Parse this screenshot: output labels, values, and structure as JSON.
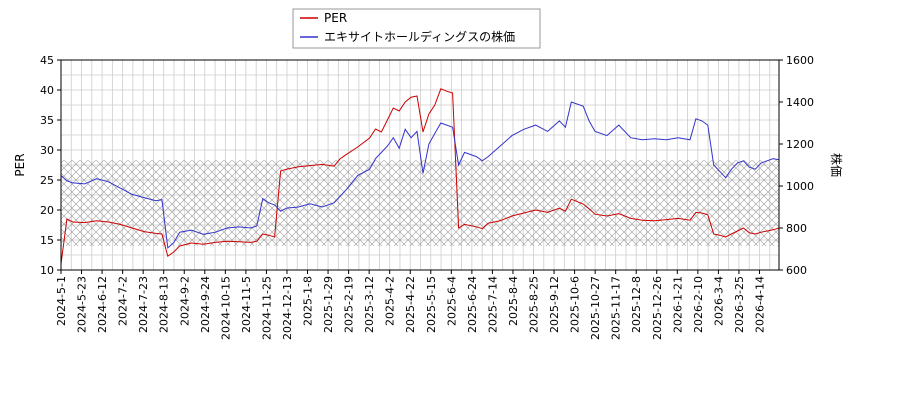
{
  "chart_data": {
    "type": "line",
    "title": "",
    "legend": {
      "placement": "top-center",
      "entries": [
        {
          "name": "PER",
          "color": "#cc0000"
        },
        {
          "name": "エキサイトホールディングスの株価",
          "color": "#3333cc"
        }
      ]
    },
    "xlabels": [
      "2024-5-1",
      "2024-5-23",
      "2024-6-12",
      "2024-7-2",
      "2024-7-23",
      "2024-8-13",
      "2024-9-2",
      "2024-9-24",
      "2024-10-15",
      "2024-11-5",
      "2024-11-25",
      "2024-12-13",
      "2025-1-8",
      "2025-1-29",
      "2025-2-19",
      "2025-3-12",
      "2025-4-2",
      "2025-4-22",
      "2025-5-15",
      "2025-6-4",
      "2025-6-24",
      "2025-7-14",
      "2025-8-4",
      "2025-8-25",
      "2025-9-12",
      "2025-10-6",
      "2025-10-27",
      "2025-11-17",
      "2025-12-8",
      "2025-12-26",
      "2026-1-21",
      "2026-2-10",
      "2026-3-4",
      "2026-3-25",
      "2026-4-14"
    ],
    "y_left": {
      "label": "PER",
      "lim": [
        10,
        45
      ],
      "ticks": [
        10,
        15,
        20,
        25,
        30,
        35,
        40,
        45
      ]
    },
    "y_right": {
      "label": "株価",
      "lim": [
        600,
        1600
      ],
      "ticks": [
        600,
        800,
        1000,
        1200,
        1400,
        1600
      ]
    },
    "band": {
      "axis": "left",
      "range": [
        14,
        28.3
      ],
      "fill": "crosshatch"
    },
    "grid": true,
    "series": [
      {
        "name": "PER",
        "axis": "left",
        "color": "#cc0000",
        "points": [
          [
            0,
            11
          ],
          [
            1,
            18.5
          ],
          [
            2,
            18.0
          ],
          [
            4,
            17.9
          ],
          [
            6,
            18.2
          ],
          [
            8,
            18.0
          ],
          [
            10,
            17.6
          ],
          [
            12,
            17.0
          ],
          [
            14,
            16.4
          ],
          [
            16,
            16.1
          ],
          [
            17,
            16.0
          ],
          [
            18,
            12.3
          ],
          [
            19,
            13.0
          ],
          [
            20,
            14.0
          ],
          [
            22,
            14.5
          ],
          [
            24,
            14.3
          ],
          [
            26,
            14.6
          ],
          [
            28,
            14.8
          ],
          [
            30,
            14.7
          ],
          [
            32,
            14.6
          ],
          [
            33,
            14.8
          ],
          [
            34,
            16.0
          ],
          [
            35,
            15.8
          ],
          [
            36,
            15.5
          ],
          [
            37,
            26.5
          ],
          [
            38,
            26.8
          ],
          [
            40,
            27.2
          ],
          [
            42,
            27.4
          ],
          [
            44,
            27.6
          ],
          [
            46,
            27.3
          ],
          [
            47,
            28.5
          ],
          [
            48,
            29.2
          ],
          [
            50,
            30.5
          ],
          [
            52,
            32.0
          ],
          [
            53,
            33.5
          ],
          [
            54,
            33.0
          ],
          [
            55,
            35.0
          ],
          [
            56,
            37.0
          ],
          [
            57,
            36.5
          ],
          [
            58,
            38.0
          ],
          [
            59,
            38.8
          ],
          [
            60,
            39.0
          ],
          [
            61,
            33.0
          ],
          [
            62,
            36.0
          ],
          [
            63,
            37.5
          ],
          [
            64,
            40.2
          ],
          [
            65,
            39.8
          ],
          [
            66,
            39.5
          ],
          [
            67,
            17.0
          ],
          [
            68,
            17.6
          ],
          [
            70,
            17.2
          ],
          [
            71,
            16.9
          ],
          [
            72,
            17.8
          ],
          [
            74,
            18.2
          ],
          [
            76,
            19.0
          ],
          [
            78,
            19.5
          ],
          [
            80,
            20.0
          ],
          [
            82,
            19.6
          ],
          [
            84,
            20.3
          ],
          [
            85,
            19.8
          ],
          [
            86,
            21.8
          ],
          [
            88,
            21.0
          ],
          [
            89,
            20.2
          ],
          [
            90,
            19.3
          ],
          [
            92,
            19.0
          ],
          [
            94,
            19.4
          ],
          [
            96,
            18.6
          ],
          [
            98,
            18.3
          ],
          [
            100,
            18.2
          ],
          [
            102,
            18.4
          ],
          [
            104,
            18.6
          ],
          [
            106,
            18.3
          ],
          [
            107,
            19.6
          ],
          [
            108,
            19.5
          ],
          [
            109,
            19.2
          ],
          [
            110,
            16.0
          ],
          [
            111,
            15.8
          ],
          [
            112,
            15.5
          ],
          [
            113,
            16.0
          ],
          [
            114,
            16.5
          ],
          [
            115,
            17.0
          ],
          [
            116,
            16.2
          ],
          [
            117,
            16.0
          ],
          [
            118,
            16.3
          ],
          [
            119,
            16.5
          ],
          [
            120,
            16.7
          ],
          [
            121,
            17.0
          ]
        ]
      },
      {
        "name": "エキサイトホールディングスの株価",
        "axis": "right",
        "color": "#3333cc",
        "points": [
          [
            0,
            1050
          ],
          [
            1,
            1025
          ],
          [
            2,
            1015
          ],
          [
            4,
            1010
          ],
          [
            6,
            1035
          ],
          [
            8,
            1020
          ],
          [
            10,
            990
          ],
          [
            12,
            960
          ],
          [
            14,
            945
          ],
          [
            16,
            930
          ],
          [
            17,
            935
          ],
          [
            18,
            705
          ],
          [
            19,
            730
          ],
          [
            20,
            780
          ],
          [
            22,
            790
          ],
          [
            24,
            770
          ],
          [
            26,
            780
          ],
          [
            28,
            800
          ],
          [
            30,
            805
          ],
          [
            32,
            800
          ],
          [
            33,
            810
          ],
          [
            34,
            940
          ],
          [
            35,
            920
          ],
          [
            36,
            910
          ],
          [
            37,
            880
          ],
          [
            38,
            895
          ],
          [
            40,
            900
          ],
          [
            42,
            915
          ],
          [
            44,
            900
          ],
          [
            46,
            920
          ],
          [
            47,
            950
          ],
          [
            48,
            980
          ],
          [
            50,
            1050
          ],
          [
            52,
            1080
          ],
          [
            53,
            1130
          ],
          [
            54,
            1160
          ],
          [
            55,
            1190
          ],
          [
            56,
            1230
          ],
          [
            57,
            1180
          ],
          [
            58,
            1270
          ],
          [
            59,
            1230
          ],
          [
            60,
            1260
          ],
          [
            61,
            1060
          ],
          [
            62,
            1200
          ],
          [
            63,
            1250
          ],
          [
            64,
            1300
          ],
          [
            65,
            1290
          ],
          [
            66,
            1280
          ],
          [
            67,
            1100
          ],
          [
            68,
            1160
          ],
          [
            70,
            1140
          ],
          [
            71,
            1120
          ],
          [
            72,
            1140
          ],
          [
            74,
            1190
          ],
          [
            76,
            1240
          ],
          [
            78,
            1270
          ],
          [
            80,
            1290
          ],
          [
            82,
            1260
          ],
          [
            84,
            1310
          ],
          [
            85,
            1280
          ],
          [
            86,
            1400
          ],
          [
            88,
            1380
          ],
          [
            89,
            1310
          ],
          [
            90,
            1260
          ],
          [
            92,
            1240
          ],
          [
            94,
            1290
          ],
          [
            96,
            1230
          ],
          [
            98,
            1220
          ],
          [
            100,
            1225
          ],
          [
            102,
            1220
          ],
          [
            104,
            1230
          ],
          [
            106,
            1220
          ],
          [
            107,
            1320
          ],
          [
            108,
            1310
          ],
          [
            109,
            1290
          ],
          [
            110,
            1100
          ],
          [
            111,
            1070
          ],
          [
            112,
            1040
          ],
          [
            113,
            1080
          ],
          [
            114,
            1110
          ],
          [
            115,
            1120
          ],
          [
            116,
            1090
          ],
          [
            117,
            1080
          ],
          [
            118,
            1110
          ],
          [
            119,
            1120
          ],
          [
            120,
            1130
          ],
          [
            121,
            1125
          ]
        ]
      }
    ]
  }
}
